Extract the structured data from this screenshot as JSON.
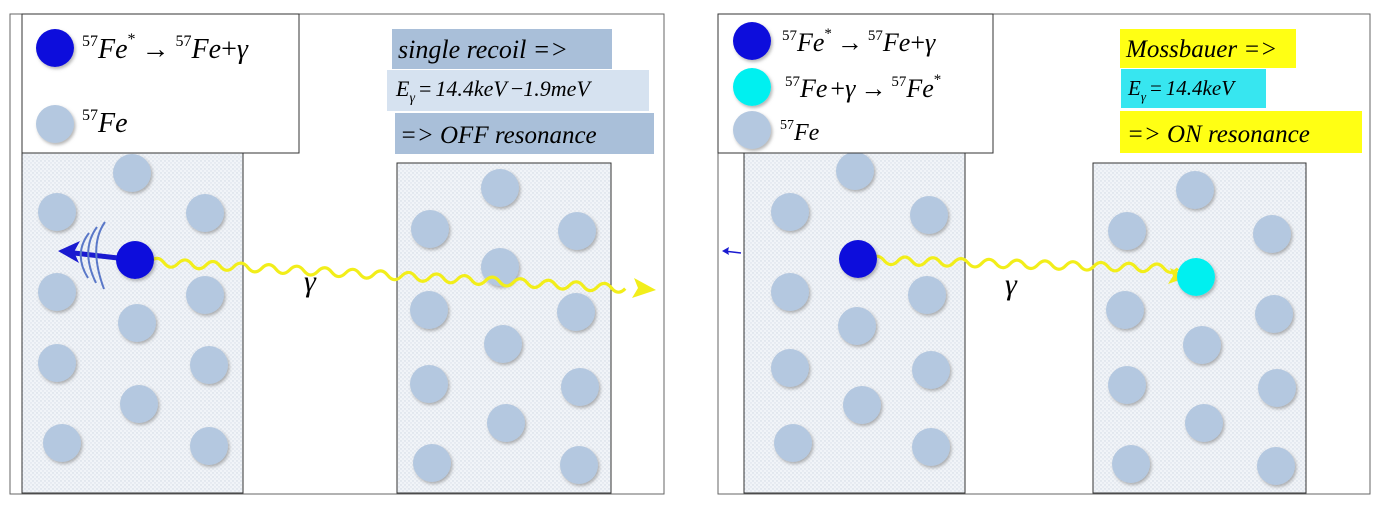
{
  "panels": {
    "left": {
      "title": "single recoil =>",
      "energy": {
        "symbol": "E",
        "subscript": "γ",
        "equals": "=",
        "value_main": "14.4keV",
        "minus": "−",
        "value_shift": "1.9meV"
      },
      "result": "=> OFF resonance",
      "legend": {
        "emission": {
          "sup1": "57",
          "el1": "Fe",
          "star": "*",
          "arrow": "→",
          "sup2": "57",
          "el2": "Fe",
          "plus": "+",
          "gamma": "γ"
        },
        "ground": {
          "sup": "57",
          "el": "Fe"
        }
      },
      "gamma_label": "γ"
    },
    "right": {
      "title": "Mossbauer =>",
      "energy": {
        "symbol": "E",
        "subscript": "γ",
        "equals": "=",
        "value_main": "14.4keV"
      },
      "result": "=> ON resonance",
      "legend": {
        "emission": {
          "sup1": "57",
          "el1": "Fe",
          "star": "*",
          "arrow": "→",
          "sup2": "57",
          "el2": "Fe",
          "plus": "+",
          "gamma": "γ"
        },
        "absorption": {
          "sup1": "57",
          "el1": "Fe",
          "plus": "+",
          "gamma": "γ",
          "arrow": "→",
          "sup2": "57",
          "el2": "Fe",
          "star": "*"
        },
        "ground": {
          "sup": "57",
          "el": "Fe"
        }
      },
      "gamma_label": "γ"
    }
  },
  "colors": {
    "excited": "#0a0adc",
    "absorber_excited": "#00f0f0",
    "ground": "#b4c8e0",
    "gamma_ray": "#f2ee1a",
    "label_blue": "#a9bfd9",
    "label_yellow": "#ffff14",
    "label_cyan": "#37e6f0",
    "recoil_arrow": "#1a1ad0"
  }
}
